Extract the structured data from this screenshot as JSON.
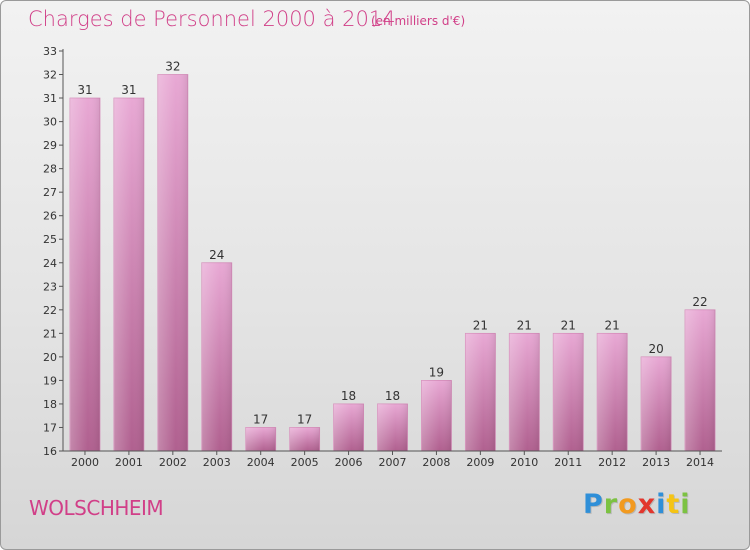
{
  "header": {
    "title": "Charges de Personnel 2000 à 2014",
    "subtitle": "(en milliers d'€)"
  },
  "footer": {
    "commune": "WOLSCHHEIM",
    "logo": {
      "letters": [
        "P",
        "r",
        "o",
        "x",
        "i",
        "t",
        "i"
      ],
      "colors": [
        "#2f8fd8",
        "#7cc242",
        "#f29a1f",
        "#e2362d",
        "#2f8fd8",
        "#f5c414",
        "#7cc242"
      ]
    }
  },
  "colors": {
    "bar_light": "#e8a8d4",
    "bar_dark": "#b0608f",
    "text": "#d13f88"
  },
  "chart_data": {
    "type": "bar",
    "categories": [
      "2000",
      "2001",
      "2002",
      "2003",
      "2004",
      "2005",
      "2006",
      "2007",
      "2008",
      "2009",
      "2010",
      "2011",
      "2012",
      "2013",
      "2014"
    ],
    "values": [
      31,
      31,
      32,
      24,
      17,
      17,
      18,
      18,
      19,
      21,
      21,
      21,
      21,
      20,
      22
    ],
    "data_labels": [
      "31",
      "31",
      "32",
      "24",
      "17",
      "17",
      "18",
      "18",
      "19",
      "21",
      "21",
      "21",
      "21",
      "20",
      "22"
    ],
    "y_ticks": [
      16,
      17,
      18,
      19,
      20,
      21,
      22,
      23,
      24,
      25,
      26,
      27,
      28,
      29,
      30,
      31,
      32,
      33
    ],
    "ylim": [
      16,
      33
    ],
    "grid": false,
    "legend": "none"
  }
}
